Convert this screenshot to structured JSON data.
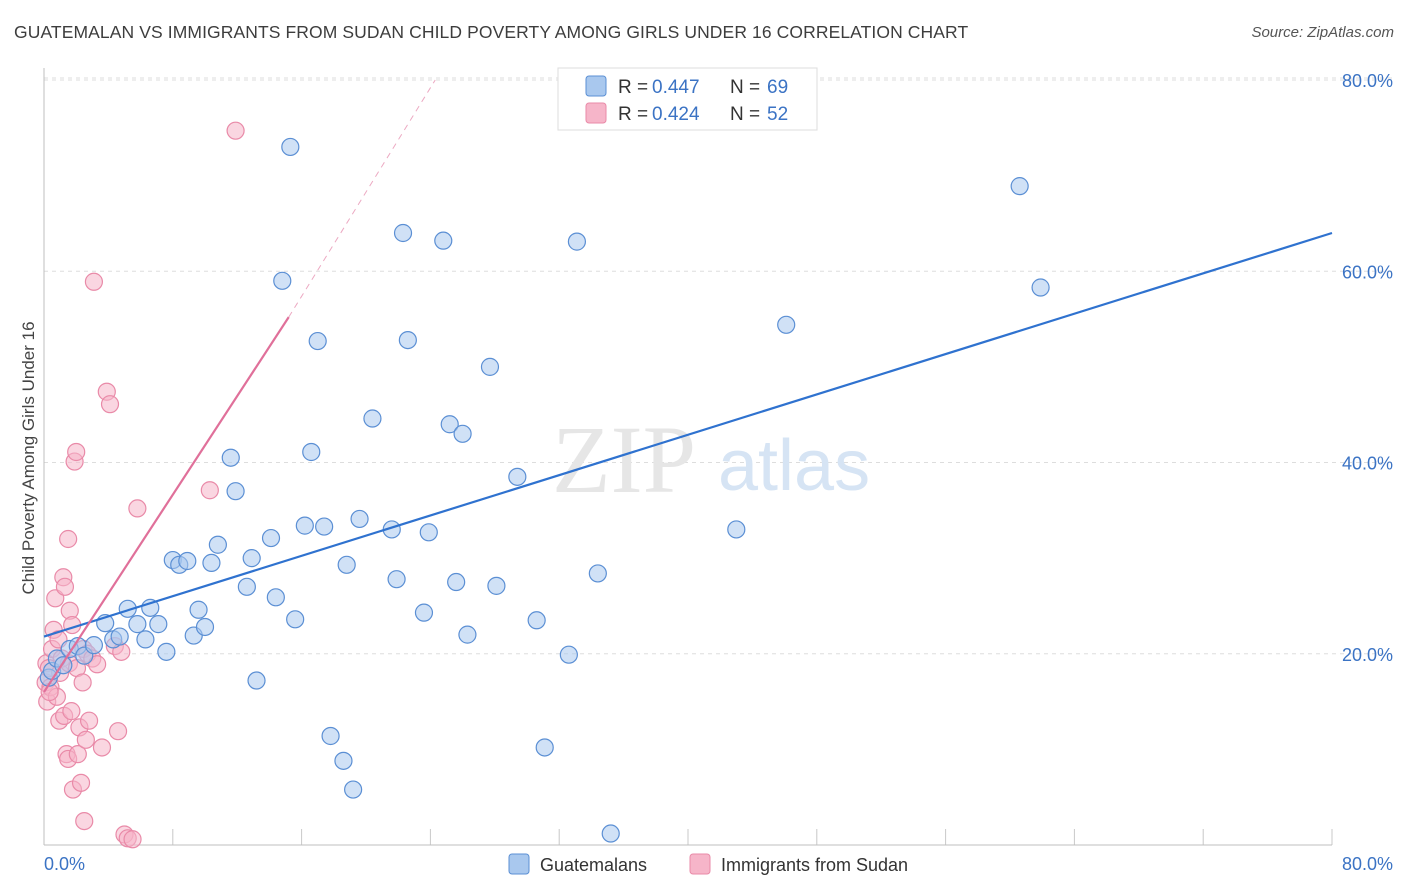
{
  "header": {
    "title": "GUATEMALAN VS IMMIGRANTS FROM SUDAN CHILD POVERTY AMONG GIRLS UNDER 16 CORRELATION CHART",
    "source": "Source: ZipAtlas.com"
  },
  "watermark": {
    "zip": "ZIP",
    "atlas": "atlas"
  },
  "colors": {
    "blue_fill": "#a9c8ee",
    "blue_stroke": "#5b8fd4",
    "blue_line": "#2f72cf",
    "pink_fill": "#f6b5c9",
    "pink_stroke": "#e98aa8",
    "pink_line": "#e0709a",
    "grid": "#dddddd",
    "axis_text": "#3b73c4"
  },
  "chart_data": {
    "type": "scatter",
    "title": "GUATEMALAN VS IMMIGRANTS FROM SUDAN CHILD POVERTY AMONG GIRLS UNDER 16 CORRELATION CHART",
    "xlabel": "",
    "ylabel": "Child Poverty Among Girls Under 16",
    "xlim": [
      0,
      80
    ],
    "ylim": [
      0,
      80
    ],
    "x_tick_labels": [
      "0.0%",
      "80.0%"
    ],
    "y_tick_labels": [
      "20.0%",
      "40.0%",
      "60.0%",
      "80.0%"
    ],
    "y_ticks": [
      20,
      40,
      60,
      80
    ],
    "x_minor_ticks": [
      8,
      16,
      24,
      32,
      40,
      48,
      56,
      64,
      72,
      80
    ],
    "legend": [
      {
        "name": "Guatemalans",
        "r_label": "R = ",
        "r": "0.447",
        "n_label": "N = ",
        "n": "69"
      },
      {
        "name": "Immigrants from Sudan",
        "r_label": "R = ",
        "r": "0.424",
        "n_label": "N = ",
        "n": "52"
      }
    ],
    "series": [
      {
        "name": "Guatemalans",
        "trend": {
          "x": [
            0,
            80
          ],
          "y": [
            21.8,
            64
          ]
        },
        "points": [
          [
            0.3,
            17.5
          ],
          [
            0.5,
            18.2
          ],
          [
            0.8,
            19.5
          ],
          [
            1.2,
            18.8
          ],
          [
            1.6,
            20.5
          ],
          [
            2.1,
            20.8
          ],
          [
            2.5,
            19.8
          ],
          [
            3.1,
            20.9
          ],
          [
            3.8,
            23.2
          ],
          [
            4.3,
            21.5
          ],
          [
            4.7,
            21.8
          ],
          [
            5.2,
            24.7
          ],
          [
            5.8,
            23.1
          ],
          [
            6.3,
            21.5
          ],
          [
            6.6,
            24.8
          ],
          [
            7.1,
            23.1
          ],
          [
            7.6,
            20.2
          ],
          [
            8.0,
            29.8
          ],
          [
            8.4,
            29.3
          ],
          [
            8.9,
            29.7
          ],
          [
            9.3,
            21.9
          ],
          [
            9.6,
            24.6
          ],
          [
            10.0,
            22.8
          ],
          [
            10.4,
            29.5
          ],
          [
            10.8,
            31.4
          ],
          [
            11.6,
            40.5
          ],
          [
            11.9,
            37.0
          ],
          [
            12.6,
            27.0
          ],
          [
            12.9,
            30.0
          ],
          [
            13.2,
            17.2
          ],
          [
            14.1,
            32.1
          ],
          [
            14.4,
            25.9
          ],
          [
            14.8,
            59.0
          ],
          [
            15.3,
            73.0
          ],
          [
            15.6,
            23.6
          ],
          [
            16.2,
            33.4
          ],
          [
            16.6,
            41.1
          ],
          [
            17.0,
            52.7
          ],
          [
            17.4,
            33.3
          ],
          [
            17.8,
            11.4
          ],
          [
            18.6,
            8.8
          ],
          [
            18.8,
            29.3
          ],
          [
            19.2,
            5.8
          ],
          [
            19.6,
            34.1
          ],
          [
            20.4,
            44.6
          ],
          [
            21.6,
            33.0
          ],
          [
            21.9,
            27.8
          ],
          [
            22.3,
            64.0
          ],
          [
            22.6,
            52.8
          ],
          [
            23.6,
            24.3
          ],
          [
            23.9,
            32.7
          ],
          [
            24.8,
            63.2
          ],
          [
            25.2,
            44.0
          ],
          [
            25.6,
            27.5
          ],
          [
            26.0,
            43.0
          ],
          [
            26.3,
            22.0
          ],
          [
            27.7,
            50.0
          ],
          [
            28.1,
            27.1
          ],
          [
            29.4,
            38.5
          ],
          [
            30.6,
            23.5
          ],
          [
            31.1,
            10.2
          ],
          [
            32.6,
            19.9
          ],
          [
            33.1,
            63.1
          ],
          [
            34.4,
            28.4
          ],
          [
            35.2,
            1.2
          ],
          [
            43.0,
            33.0
          ],
          [
            46.1,
            54.4
          ],
          [
            60.6,
            68.9
          ],
          [
            61.9,
            58.3
          ]
        ]
      },
      {
        "name": "Immigrants from Sudan",
        "trend": {
          "x": [
            0,
            15.2
          ],
          "y": [
            16.0,
            55.2
          ]
        },
        "trend_extension": {
          "x": [
            15.2,
            24.3
          ],
          "y": [
            55.2,
            80.0
          ]
        },
        "points": [
          [
            0.1,
            17.0
          ],
          [
            0.15,
            19.0
          ],
          [
            0.2,
            15.0
          ],
          [
            0.3,
            18.5
          ],
          [
            0.4,
            16.5
          ],
          [
            0.5,
            20.5
          ],
          [
            0.6,
            22.5
          ],
          [
            0.7,
            25.8
          ],
          [
            0.8,
            15.5
          ],
          [
            0.9,
            21.5
          ],
          [
            0.95,
            13.0
          ],
          [
            1.0,
            18.0
          ],
          [
            1.1,
            19.5
          ],
          [
            1.2,
            28.0
          ],
          [
            1.25,
            13.5
          ],
          [
            1.3,
            27.0
          ],
          [
            1.4,
            9.5
          ],
          [
            1.5,
            32.0
          ],
          [
            1.5,
            9.0
          ],
          [
            1.55,
            19.0
          ],
          [
            1.6,
            24.5
          ],
          [
            1.7,
            14.0
          ],
          [
            1.75,
            23.0
          ],
          [
            1.8,
            5.8
          ],
          [
            1.9,
            40.1
          ],
          [
            2.0,
            41.1
          ],
          [
            2.05,
            18.5
          ],
          [
            2.1,
            9.5
          ],
          [
            2.2,
            12.3
          ],
          [
            2.3,
            6.5
          ],
          [
            2.4,
            17.0
          ],
          [
            2.45,
            20.5
          ],
          [
            2.5,
            2.5
          ],
          [
            2.6,
            11.0
          ],
          [
            2.7,
            20.0
          ],
          [
            2.8,
            13.0
          ],
          [
            3.0,
            19.5
          ],
          [
            3.1,
            58.9
          ],
          [
            3.3,
            18.9
          ],
          [
            3.6,
            10.2
          ],
          [
            3.9,
            47.4
          ],
          [
            4.1,
            46.1
          ],
          [
            4.4,
            20.8
          ],
          [
            4.6,
            11.9
          ],
          [
            4.8,
            20.2
          ],
          [
            5.0,
            1.1
          ],
          [
            5.2,
            0.7
          ],
          [
            5.5,
            0.6
          ],
          [
            5.8,
            35.2
          ],
          [
            10.3,
            37.1
          ],
          [
            11.9,
            74.7
          ],
          [
            0.35,
            16.0
          ]
        ]
      }
    ]
  }
}
